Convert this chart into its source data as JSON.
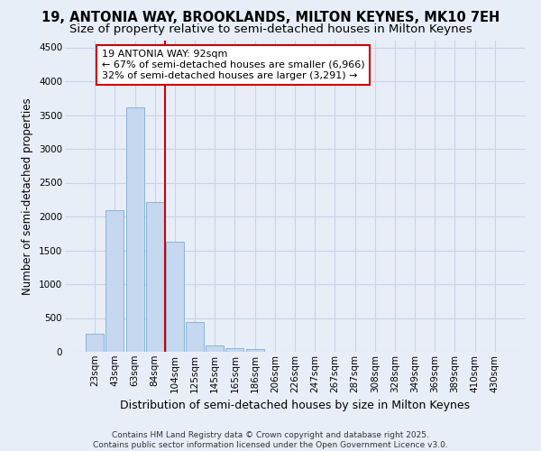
{
  "title": "19, ANTONIA WAY, BROOKLANDS, MILTON KEYNES, MK10 7EH",
  "subtitle": "Size of property relative to semi-detached houses in Milton Keynes",
  "xlabel": "Distribution of semi-detached houses by size in Milton Keynes",
  "ylabel": "Number of semi-detached properties",
  "categories": [
    "23sqm",
    "43sqm",
    "63sqm",
    "84sqm",
    "104sqm",
    "125sqm",
    "145sqm",
    "165sqm",
    "186sqm",
    "206sqm",
    "226sqm",
    "247sqm",
    "267sqm",
    "287sqm",
    "308sqm",
    "328sqm",
    "349sqm",
    "369sqm",
    "389sqm",
    "410sqm",
    "430sqm"
  ],
  "values": [
    265,
    2100,
    3620,
    2220,
    1630,
    445,
    100,
    50,
    35,
    0,
    0,
    0,
    0,
    0,
    0,
    0,
    0,
    0,
    0,
    0,
    0
  ],
  "bar_color": "#c5d8ef",
  "bar_edge_color": "#7aaed4",
  "grid_color": "#c8d4e8",
  "background_color": "#e8eef8",
  "annotation_text": "19 ANTONIA WAY: 92sqm\n← 67% of semi-detached houses are smaller (6,966)\n32% of semi-detached houses are larger (3,291) →",
  "annotation_box_facecolor": "#ffffff",
  "annotation_box_edgecolor": "#cc0000",
  "vline_x": 3.5,
  "vline_color": "#cc0000",
  "ylim": [
    0,
    4600
  ],
  "yticks": [
    0,
    500,
    1000,
    1500,
    2000,
    2500,
    3000,
    3500,
    4000,
    4500
  ],
  "footer": "Contains HM Land Registry data © Crown copyright and database right 2025.\nContains public sector information licensed under the Open Government Licence v3.0.",
  "title_fontsize": 10.5,
  "subtitle_fontsize": 9.5,
  "xlabel_fontsize": 9,
  "ylabel_fontsize": 8.5,
  "tick_fontsize": 7.5,
  "annotation_fontsize": 8,
  "footer_fontsize": 6.5
}
